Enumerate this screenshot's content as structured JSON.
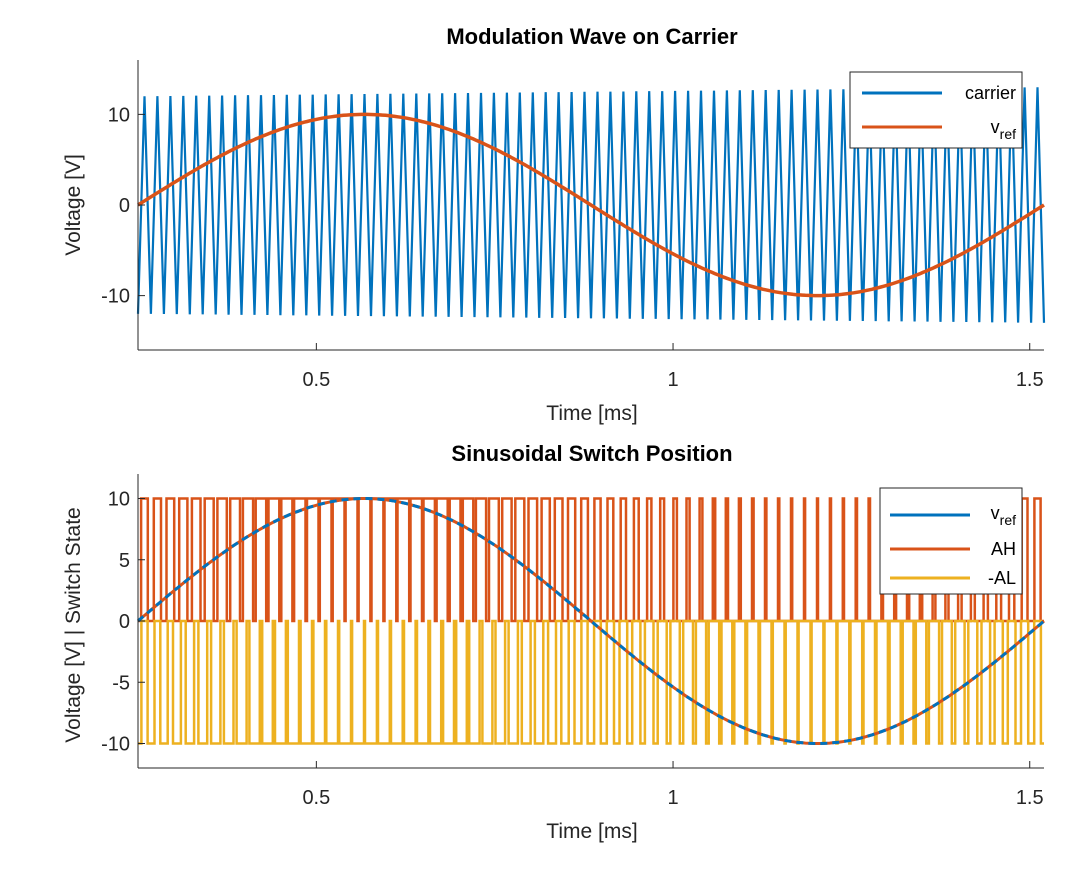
{
  "chart_data": [
    {
      "type": "line",
      "title": "Modulation Wave on Carrier",
      "xlabel": "Time [ms]",
      "ylabel": "Voltage [V]",
      "xlim": [
        0.25,
        1.52
      ],
      "ylim": [
        -16,
        16
      ],
      "xticks": [
        0.5,
        1,
        1.5
      ],
      "xtick_labels": [
        "0.5",
        "1",
        "1.5"
      ],
      "yticks": [
        -10,
        0,
        10
      ],
      "ytick_labels": [
        "-10",
        "0",
        "10"
      ],
      "grid": false,
      "legend_position": "top-right",
      "series": [
        {
          "name": "carrier",
          "color": "#0072BD",
          "kind": "triangle",
          "x_start": 0.25,
          "x_end": 1.52,
          "cycles": 70,
          "amplitude_start": 12,
          "amplitude_end": 13
        },
        {
          "name": "v",
          "name_subscript": "ref",
          "color": "#D95319",
          "kind": "sine",
          "amplitude": 10,
          "x": [
            0.25,
            0.4,
            0.55,
            0.7,
            0.85,
            1.0,
            1.15,
            1.3,
            1.45,
            1.52
          ],
          "y": [
            0.0,
            6.3,
            9.8,
            8.6,
            3.0,
            -3.8,
            -9.0,
            -9.6,
            -5.1,
            0.0
          ]
        }
      ]
    },
    {
      "type": "line",
      "title": "Sinusoidal Switch Position",
      "xlabel": "Time [ms]",
      "ylabel": "Voltage [V] | Switch State",
      "xlim": [
        0.25,
        1.52
      ],
      "ylim": [
        -12,
        12
      ],
      "xticks": [
        0.5,
        1,
        1.5
      ],
      "xtick_labels": [
        "0.5",
        "1",
        "1.5"
      ],
      "yticks": [
        -10,
        -5,
        0,
        5,
        10
      ],
      "ytick_labels": [
        "-10",
        "-5",
        "0",
        "5",
        "10"
      ],
      "grid": false,
      "legend_position": "top-right",
      "series": [
        {
          "name": "v",
          "name_subscript": "ref",
          "color": "#0072BD",
          "kind": "sine",
          "dashed": true,
          "amplitude": 10,
          "x": [
            0.25,
            0.4,
            0.55,
            0.7,
            0.85,
            1.0,
            1.15,
            1.3,
            1.45,
            1.52
          ],
          "y": [
            0.0,
            6.3,
            9.8,
            8.6,
            3.0,
            -3.8,
            -9.0,
            -9.6,
            -5.1,
            0.0
          ]
        },
        {
          "name": "AH",
          "color": "#D95319",
          "kind": "pwm",
          "high": 10,
          "low": 0
        },
        {
          "name": "-AL",
          "color": "#EDB120",
          "kind": "pwm",
          "high": 0,
          "low": -10
        }
      ]
    }
  ]
}
